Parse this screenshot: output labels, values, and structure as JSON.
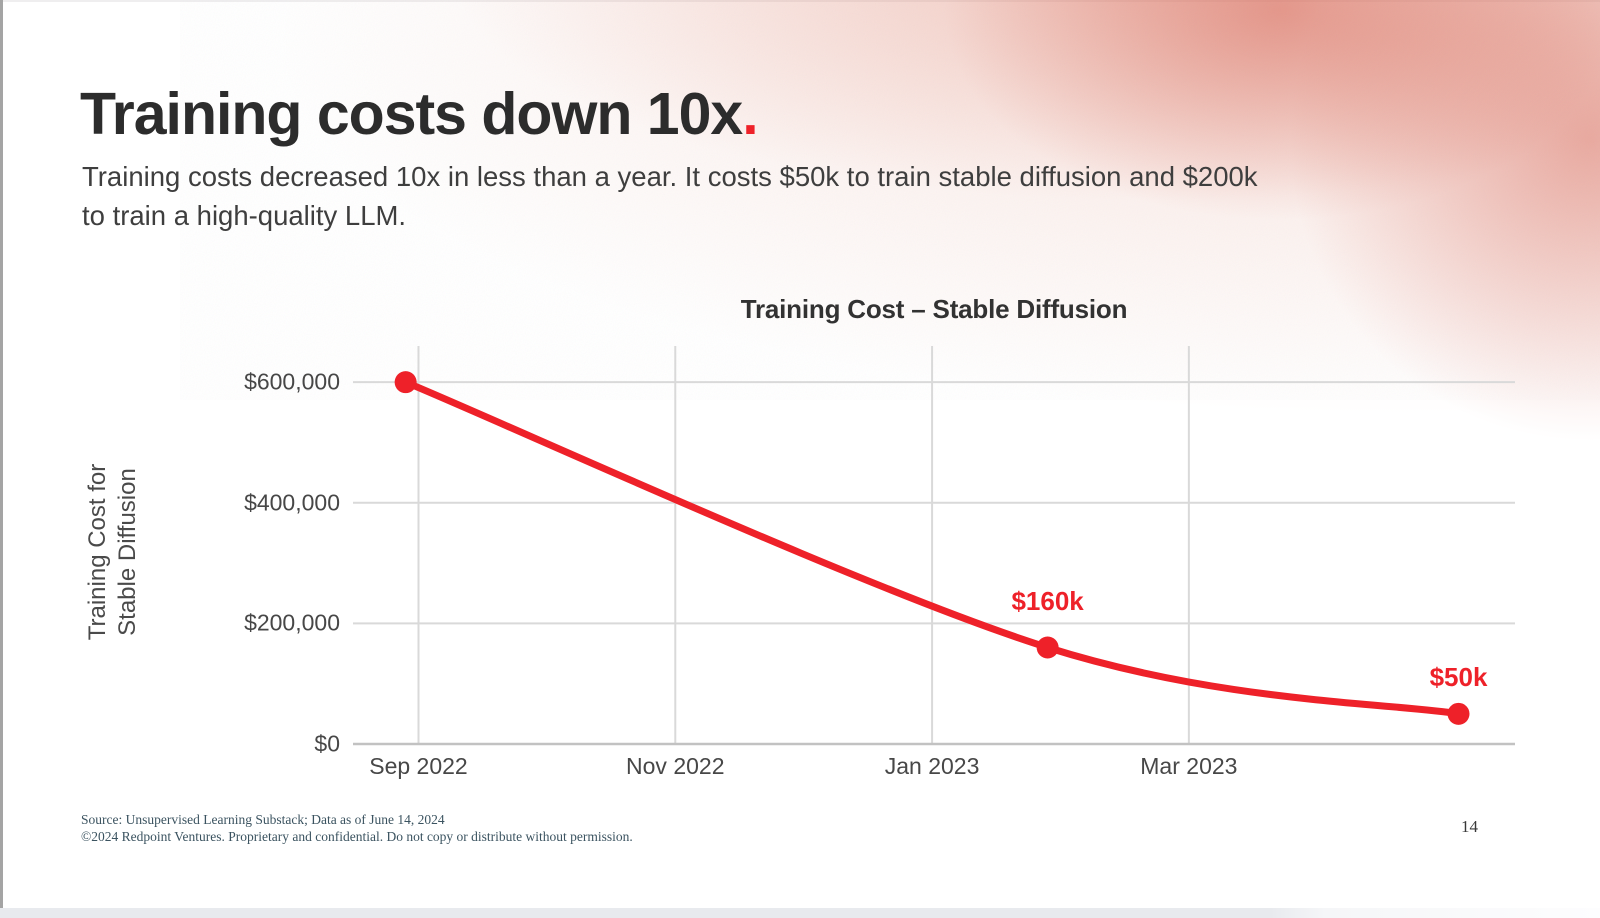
{
  "slide": {
    "header": {
      "title": "Training costs down 10x",
      "title_period": ".",
      "subtitle_lines": [
        "Training costs decreased 10x in less than a year. It costs $50k to train stable diffusion and $200k",
        "to train a high-quality LLM."
      ]
    },
    "footer": {
      "source_line": "Source: Unsupervised Learning Substack; Data as of June 14, 2024",
      "copyright_line": "©2024 Redpoint Ventures. Proprietary and confidential. Do not copy or distribute without permission.",
      "page_number": "14"
    }
  },
  "colors": {
    "accent_red": "#ee2129",
    "gridline": "#d9d9d9",
    "axis_line": "#c2c2c2",
    "background_blob": "#d66050"
  },
  "chart_data": {
    "type": "line",
    "title": "Training Cost – Stable Diffusion",
    "ylabel_lines": [
      "Training Cost for",
      "Stable Diffusion"
    ],
    "xlabel": "",
    "grid": true,
    "legend": "none",
    "x_ticks": [
      {
        "label": "Sep 2022",
        "m": 0
      },
      {
        "label": "Nov 2022",
        "m": 2
      },
      {
        "label": "Jan 2023",
        "m": 4
      },
      {
        "label": "Mar 2023",
        "m": 6
      }
    ],
    "y_ticks": [
      {
        "label": "$0",
        "v": 0
      },
      {
        "label": "$200,000",
        "v": 200000
      },
      {
        "label": "$400,000",
        "v": 400000
      },
      {
        "label": "$600,000",
        "v": 600000
      }
    ],
    "x_range": [
      -0.51,
      8.54
    ],
    "y_range": [
      0,
      660000
    ],
    "line_color": "#ee2129",
    "series": [
      {
        "name": "Training Cost for Stable Diffusion",
        "points": [
          {
            "x_months_from_sep_2022": -0.1,
            "value": 600000,
            "label": "",
            "label_dy": 0
          },
          {
            "x_months_from_sep_2022": 4.9,
            "value": 160000,
            "label": "$160k",
            "label_dy": -47
          },
          {
            "x_months_from_sep_2022": 8.1,
            "value": 50000,
            "label": "$50k",
            "label_dy": -37
          }
        ]
      }
    ]
  }
}
